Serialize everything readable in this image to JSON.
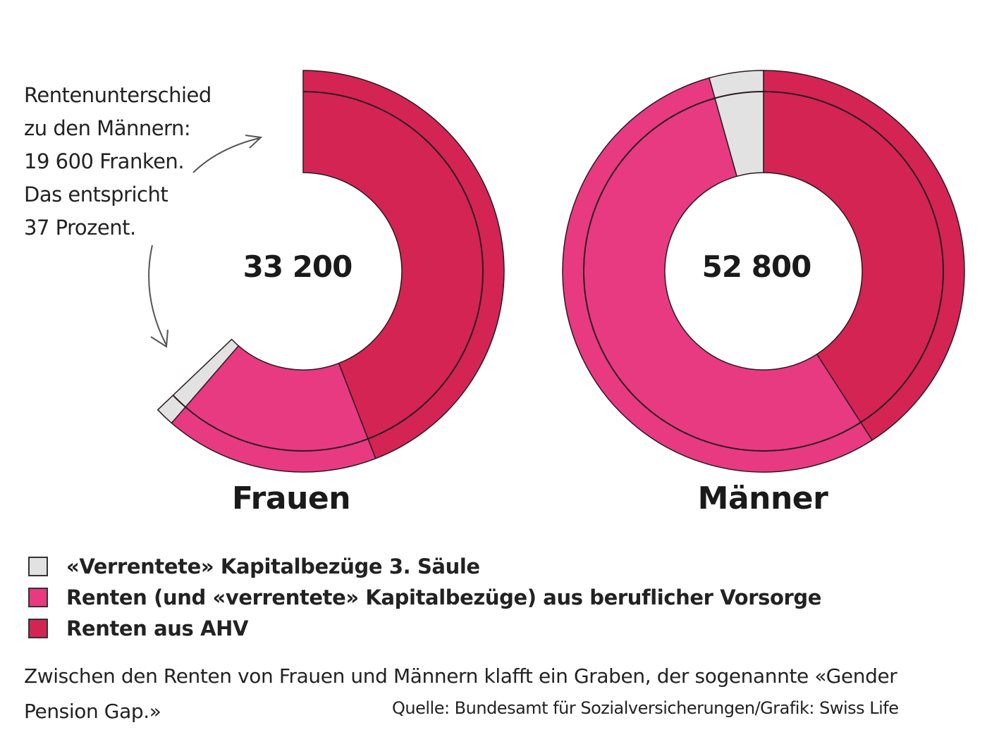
{
  "annotation": {
    "lines": [
      "Rentenunterschied",
      "zu den Männern:",
      "19 600 Franken.",
      "Das entspricht",
      "37 Prozent."
    ]
  },
  "charts": {
    "frauen": {
      "label": "Frauen",
      "total": "33 200"
    },
    "maenner": {
      "label": "Männer",
      "total": "52 800"
    }
  },
  "legend": {
    "items": [
      {
        "label": "«Verrentete» Kapitalbezüge 3. Säule",
        "color": "#e2e2e2"
      },
      {
        "label": "Renten (und «verrentete» Kapitalbezüge) aus beruflicher Vorsorge",
        "color": "#e83a80"
      },
      {
        "label": "Renten aus AHV",
        "color": "#d42454"
      }
    ]
  },
  "caption": {
    "line1": "Zwischen den Renten von Frauen und Männern klafft ein Graben, der sogenannte «Gender",
    "line2": "Pension Gap.»"
  },
  "source": "Quelle: Bundesamt für Sozialversicherungen/Grafik: Swiss Life",
  "colors": {
    "ahv": "#d42454",
    "bvg": "#e83a80",
    "saeule3": "#e2e2e2",
    "outline": "#2a1a20"
  },
  "chart_data": {
    "type": "pie",
    "subtype": "donut",
    "title": "",
    "categories": [
      "Frauen",
      "Männer"
    ],
    "totals": [
      33200,
      52800
    ],
    "unit": "Franken",
    "series": [
      {
        "name": "«Verrentete» Kapitalbezüge 3. Säule",
        "color": "#e2e2e2",
        "values": [
          800,
          2300
        ]
      },
      {
        "name": "Renten (und «verrentete» Kapitalbezüge) aus beruflicher Vorsorge",
        "color": "#e83a80",
        "values": [
          9100,
          28900
        ]
      },
      {
        "name": "Renten aus AHV",
        "color": "#d42454",
        "values": [
          23300,
          21600
        ]
      }
    ],
    "annotations": [
      "Rentenunterschied zu den Männern: 19 600 Franken. Das entspricht 37 Prozent."
    ],
    "legend_position": "bottom-left",
    "notes": "Frauen donut is drawn as a partial ring (≈63% of full circle) proportional to Männer total; values per segment estimated from arc angles."
  }
}
